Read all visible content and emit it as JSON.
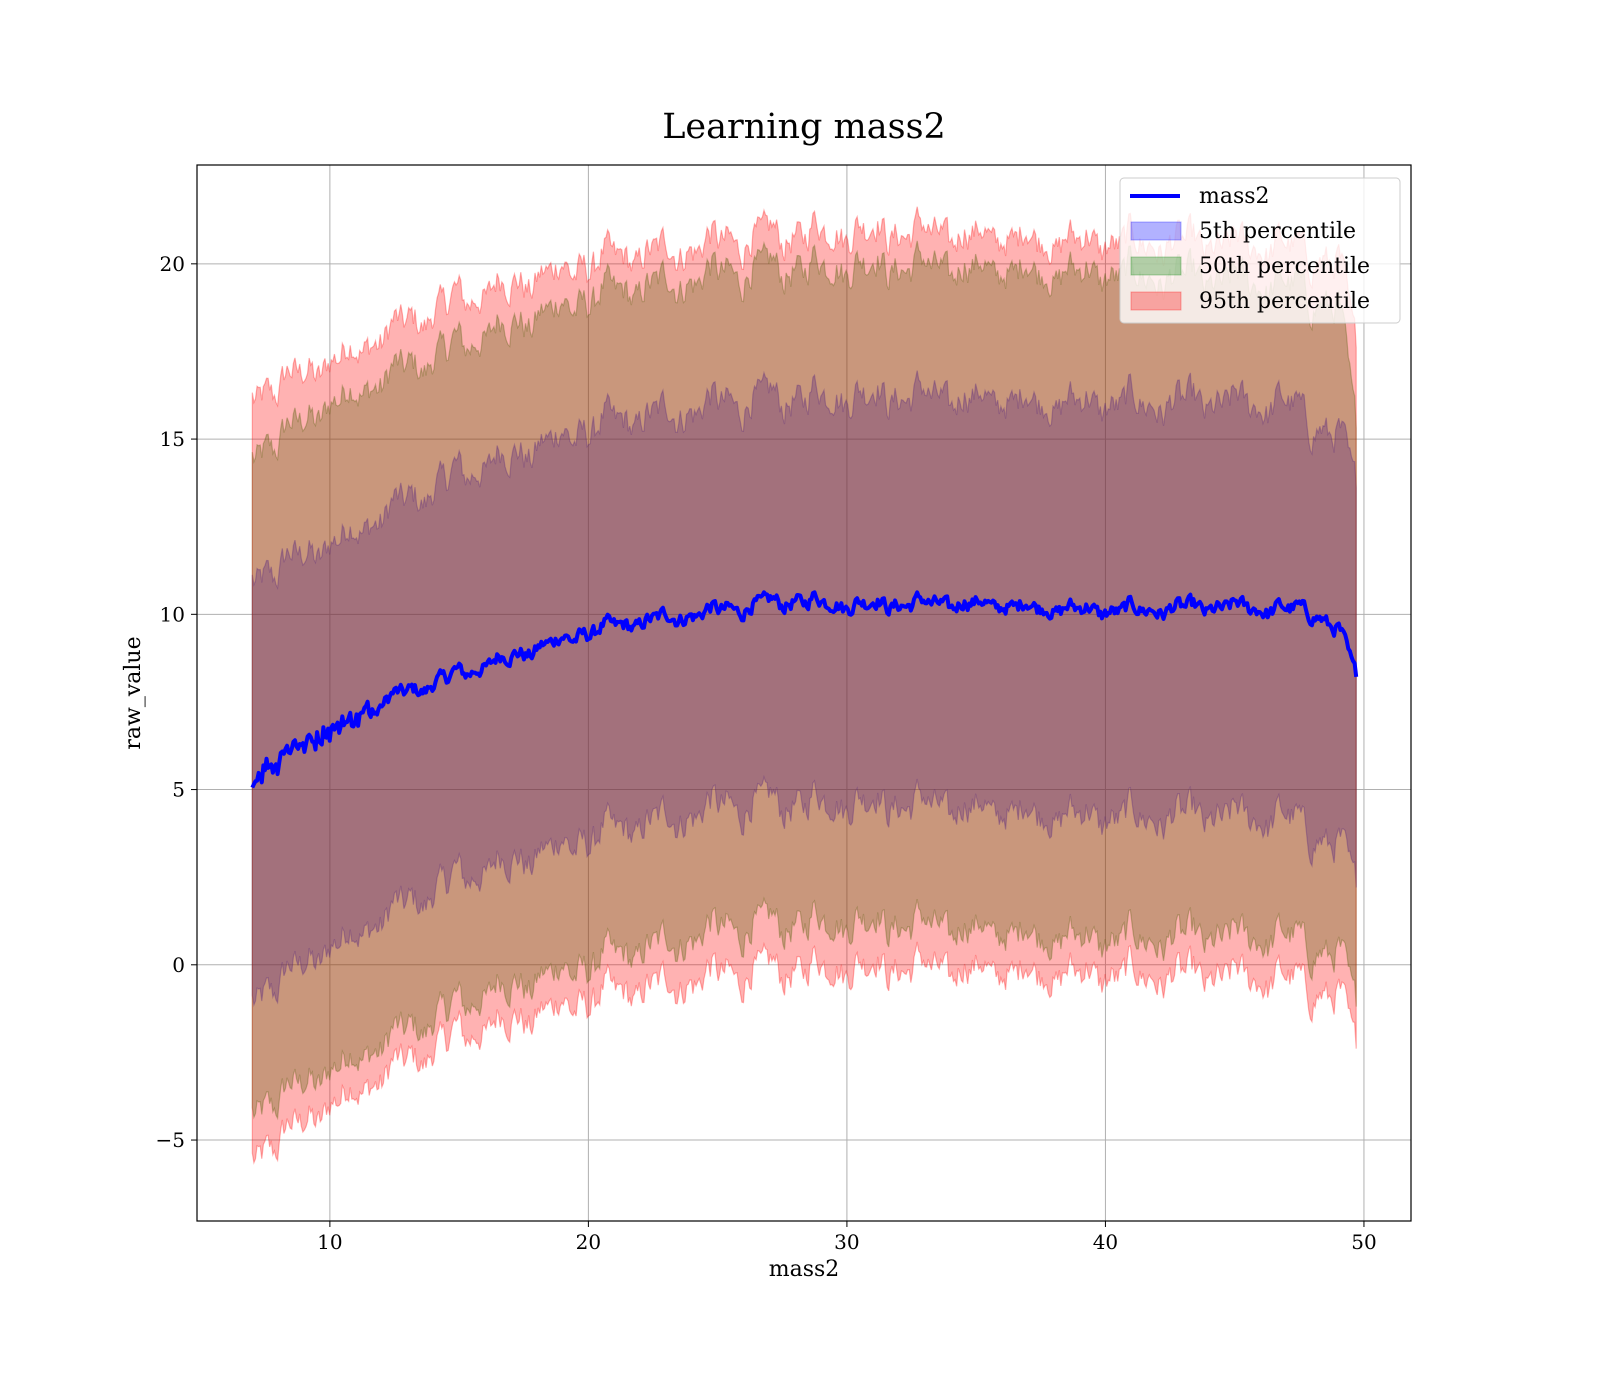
{
  "chart_data": {
    "type": "area",
    "title": "Learning mass2",
    "xlabel": "mass2",
    "ylabel": "raw_value",
    "xlim": [
      4.86,
      51.82
    ],
    "ylim": [
      -7.31,
      22.82
    ],
    "xticks": [
      10,
      20,
      30,
      40,
      50
    ],
    "yticks": [
      -5,
      0,
      5,
      10,
      15,
      20
    ],
    "ytick_labels": [
      "−5",
      "0",
      "5",
      "10",
      "15",
      "20"
    ],
    "grid": true,
    "legend_position": "top-right",
    "x_range": [
      7.0,
      49.7
    ],
    "noise_note": "series are noisy; key points below are smoothed trend values",
    "series": [
      {
        "name": "mass2",
        "kind": "line",
        "color": "#0000ff",
        "x": [
          7,
          8,
          10,
          12,
          15,
          17,
          20,
          23,
          25,
          28,
          30,
          35,
          40,
          45,
          48,
          49,
          49.7
        ],
        "y": [
          5.2,
          5.9,
          6.7,
          7.5,
          8.3,
          8.8,
          9.5,
          9.9,
          10.1,
          10.4,
          10.3,
          10.3,
          10.1,
          10.2,
          10.1,
          9.5,
          8.3
        ]
      },
      {
        "name": "5th percentile",
        "kind": "band",
        "color": "#0000ff",
        "x": [
          7,
          10,
          15,
          20,
          25,
          30,
          40,
          47,
          49,
          49.7
        ],
        "upper": [
          11.0,
          12.0,
          14.0,
          15.3,
          16.0,
          16.3,
          16.0,
          16.0,
          15.0,
          13.8
        ],
        "lower": [
          -1.0,
          0.5,
          2.5,
          3.6,
          4.5,
          4.7,
          4.2,
          4.2,
          3.3,
          2.4
        ]
      },
      {
        "name": "50th percentile",
        "kind": "band",
        "color": "#008000",
        "x": [
          7,
          10,
          16,
          20,
          25,
          30,
          40,
          47,
          49,
          49.7
        ],
        "upper": [
          14.5,
          16.0,
          18.0,
          19.0,
          19.7,
          20.0,
          19.7,
          19.4,
          18.7,
          15.5
        ],
        "lower": [
          -4.2,
          -3.0,
          -0.8,
          0.0,
          1.0,
          1.3,
          0.7,
          0.8,
          0.2,
          -1.0
        ]
      },
      {
        "name": "95th percentile",
        "kind": "band",
        "color": "#ff0000",
        "x": [
          7,
          10,
          15,
          20,
          25,
          30,
          40,
          47,
          49,
          49.7
        ],
        "upper": [
          16.2,
          17.2,
          19.0,
          20.0,
          20.6,
          21.0,
          20.6,
          20.5,
          20.0,
          17.8
        ],
        "lower": [
          -5.5,
          -4.0,
          -2.0,
          -1.0,
          -0.3,
          0.0,
          -0.3,
          -0.4,
          -1.0,
          -2.2
        ]
      }
    ]
  }
}
